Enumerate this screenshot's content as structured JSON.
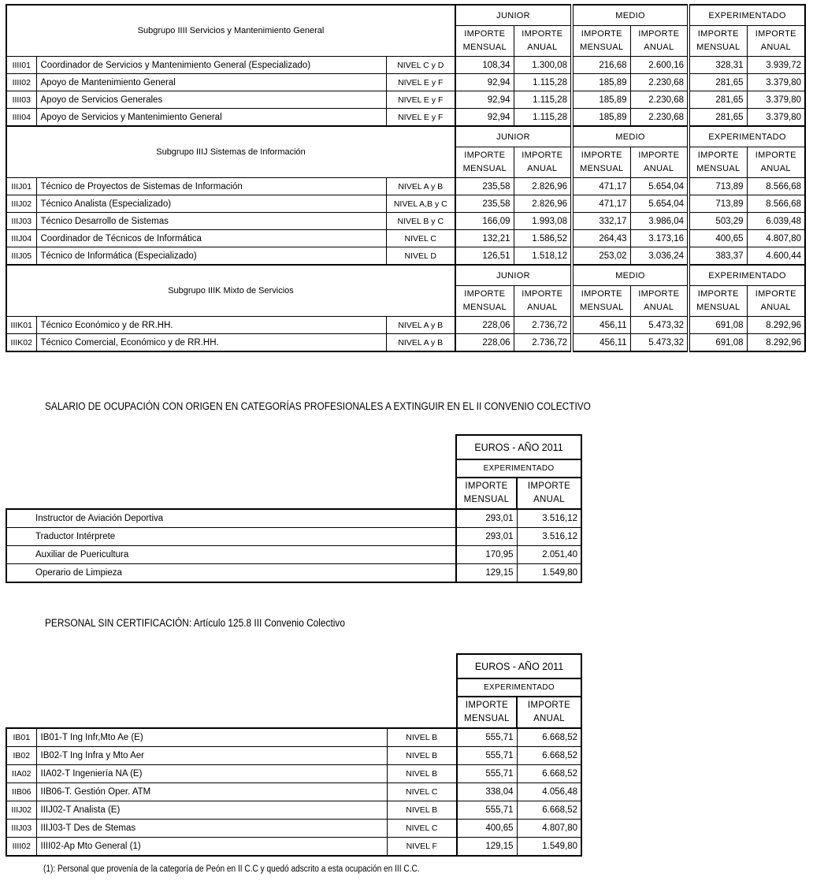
{
  "labels": {
    "junior": "JUNIOR",
    "medio": "MEDIO",
    "experimentado": "EXPERIMENTADO",
    "importe": "IMPORTE",
    "mensual": "MENSUAL",
    "anual": "ANUAL",
    "euros_ano": "EUROS - AÑO 2011"
  },
  "salary_sections": [
    {
      "title": "Subgrupo IIII Servicios y Mantenimiento General",
      "rows": [
        {
          "code": "IIII01",
          "desc": "Coordinador de Servicios y Mantenimiento General (Especializado)",
          "nivel": "NIVEL C y D",
          "values": [
            "108,34",
            "1.300,08",
            "216,68",
            "2.600,16",
            "328,31",
            "3.939,72"
          ]
        },
        {
          "code": "IIII02",
          "desc": "Apoyo de Mantenimiento General",
          "nivel": "NIVEL E y F",
          "values": [
            "92,94",
            "1.115,28",
            "185,89",
            "2.230,68",
            "281,65",
            "3.379,80"
          ]
        },
        {
          "code": "IIII03",
          "desc": "Apoyo de Servicios Generales",
          "nivel": "NIVEL E y F",
          "values": [
            "92,94",
            "1.115,28",
            "185,89",
            "2.230,68",
            "281,65",
            "3.379,80"
          ]
        },
        {
          "code": "IIII04",
          "desc": "Apoyo de Servicios y Mantenimiento General",
          "nivel": "NIVEL E y F",
          "values": [
            "92,94",
            "1.115,28",
            "185,89",
            "2.230,68",
            "281,65",
            "3.379,80"
          ]
        }
      ]
    },
    {
      "title": "Subgrupo IIIJ Sistemas de Información",
      "rows": [
        {
          "code": "IIIJ01",
          "desc": "Técnico de Proyectos de Sistemas de Información",
          "nivel": "NIVEL A y B",
          "values": [
            "235,58",
            "2.826,96",
            "471,17",
            "5.654,04",
            "713,89",
            "8.566,68"
          ]
        },
        {
          "code": "IIIJ02",
          "desc": "Técnico Analista (Especializado)",
          "nivel": "NIVEL A,B y C",
          "values": [
            "235,58",
            "2.826,96",
            "471,17",
            "5.654,04",
            "713,89",
            "8.566,68"
          ]
        },
        {
          "code": "IIIJ03",
          "desc": "Técnico Desarrollo de Sistemas",
          "nivel": "NIVEL B y C",
          "values": [
            "166,09",
            "1.993,08",
            "332,17",
            "3.986,04",
            "503,29",
            "6.039,48"
          ]
        },
        {
          "code": "IIIJ04",
          "desc": "Coordinador de Técnicos de Informática",
          "nivel": "NIVEL C",
          "values": [
            "132,21",
            "1.586,52",
            "264,43",
            "3.173,16",
            "400,65",
            "4.807,80"
          ]
        },
        {
          "code": "IIIJ05",
          "desc": "Técnico de Informática (Especializado)",
          "nivel": "NIVEL D",
          "values": [
            "126,51",
            "1.518,12",
            "253,02",
            "3.036,24",
            "383,37",
            "4.600,44"
          ]
        }
      ]
    },
    {
      "title": "Subgrupo IIIK Mixto de Servicios",
      "rows": [
        {
          "code": "IIIK01",
          "desc": "Técnico Económico y de RR.HH.",
          "nivel": "NIVEL A y B",
          "values": [
            "228,06",
            "2.736,72",
            "456,11",
            "5.473,32",
            "691,08",
            "8.292,96"
          ]
        },
        {
          "code": "IIIK02",
          "desc": "Técnico Comercial, Económico y de RR.HH.",
          "nivel": "NIVEL A y B",
          "values": [
            "228,06",
            "2.736,72",
            "456,11",
            "5.473,32",
            "691,08",
            "8.292,96"
          ]
        }
      ]
    }
  ],
  "heading_extinguir": "SALARIO DE OCUPACIÓN CON ORIGEN EN CATEGORÍAS PROFESIONALES A EXTINGUIR EN EL II CONVENIO COLECTIVO",
  "table_extinguir": {
    "rows": [
      {
        "desc": "Instructor de Aviación Deportiva",
        "mensual": "293,01",
        "anual": "3.516,12"
      },
      {
        "desc": "Traductor Intérprete",
        "mensual": "293,01",
        "anual": "3.516,12"
      },
      {
        "desc": "Auxiliar de Puericultura",
        "mensual": "170,95",
        "anual": "2.051,40"
      },
      {
        "desc": "Operario de Limpieza",
        "mensual": "129,15",
        "anual": "1.549,80"
      }
    ]
  },
  "heading_sin_cert": "PERSONAL SIN CERTIFICACIÓN: Artículo 125.8 III Convenio Colectivo",
  "table_sin_cert": {
    "rows": [
      {
        "code": "IB01",
        "desc": "IB01-T Ing Infr,Mto Ae (E)",
        "nivel": "NIVEL B",
        "mensual": "555,71",
        "anual": "6.668,52"
      },
      {
        "code": "IB02",
        "desc": "IB02-T Ing Infra y Mto Aer",
        "nivel": "NIVEL B",
        "mensual": "555,71",
        "anual": "6.668,52"
      },
      {
        "code": "IIA02",
        "desc": "IIA02-T Ingeniería NA (E)",
        "nivel": "NIVEL B",
        "mensual": "555,71",
        "anual": "6.668,52"
      },
      {
        "code": "IIB06",
        "desc": "IIB06-T. Gestión Oper. ATM",
        "nivel": "NIVEL C",
        "mensual": "338,04",
        "anual": "4.056,48"
      },
      {
        "code": "IIIJ02",
        "desc": "IIIJ02-T Analista (E)",
        "nivel": "NIVEL B",
        "mensual": "555,71",
        "anual": "6.668,52"
      },
      {
        "code": "IIIJ03",
        "desc": "IIIJ03-T Des de Stemas",
        "nivel": "NIVEL C",
        "mensual": "400,65",
        "anual": "4.807,80"
      },
      {
        "code": "IIII02",
        "desc": "IIII02-Ap Mto General (1)",
        "nivel": "NIVEL F",
        "mensual": "129,15",
        "anual": "1.549,80"
      }
    ]
  },
  "footnote": "(1): Personal que provenía de la categoría de Peón en II C.C y quedó adscrito a esta ocupación en III C.C."
}
